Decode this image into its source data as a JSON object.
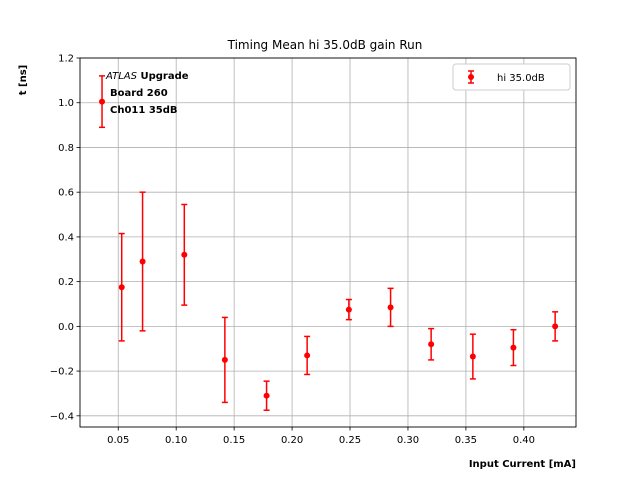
{
  "chart_data": {
    "type": "scatter",
    "title": "Timing Mean hi 35.0dB gain Run",
    "xlabel": "Input Current [mA]",
    "ylabel": "t [ns]",
    "xlim": [
      0.017,
      0.445
    ],
    "ylim": [
      -0.45,
      1.2
    ],
    "xticks": [
      0.05,
      0.1,
      0.15,
      0.2,
      0.25,
      0.3,
      0.35,
      0.4
    ],
    "xtick_labels": [
      "0.05",
      "0.10",
      "0.15",
      "0.20",
      "0.25",
      "0.30",
      "0.35",
      "0.40"
    ],
    "yticks": [
      -0.4,
      -0.2,
      0.0,
      0.2,
      0.4,
      0.6,
      0.8,
      1.0,
      1.2
    ],
    "ytick_labels": [
      "−0.4",
      "−0.2",
      "0.0",
      "0.2",
      "0.4",
      "0.6",
      "0.8",
      "1.0",
      "1.2"
    ],
    "grid": true,
    "legend_position": "top-right",
    "annotation": {
      "line1_italic": "ATLAS",
      "line1_bold": " Upgrade",
      "line2": "Board 260",
      "line3": "Ch011 35dB"
    },
    "series": [
      {
        "name": "hi 35.0dB",
        "color": "#ff0000",
        "x": [
          0.036,
          0.053,
          0.071,
          0.107,
          0.142,
          0.178,
          0.213,
          0.249,
          0.285,
          0.32,
          0.356,
          0.391,
          0.427
        ],
        "y": [
          1.005,
          0.175,
          0.29,
          0.32,
          -0.15,
          -0.31,
          -0.13,
          0.075,
          0.085,
          -0.08,
          -0.135,
          -0.095,
          0.0
        ],
        "yerr": [
          0.115,
          0.24,
          0.31,
          0.225,
          0.19,
          0.065,
          0.085,
          0.045,
          0.085,
          0.07,
          0.1,
          0.08,
          0.065
        ]
      }
    ]
  }
}
